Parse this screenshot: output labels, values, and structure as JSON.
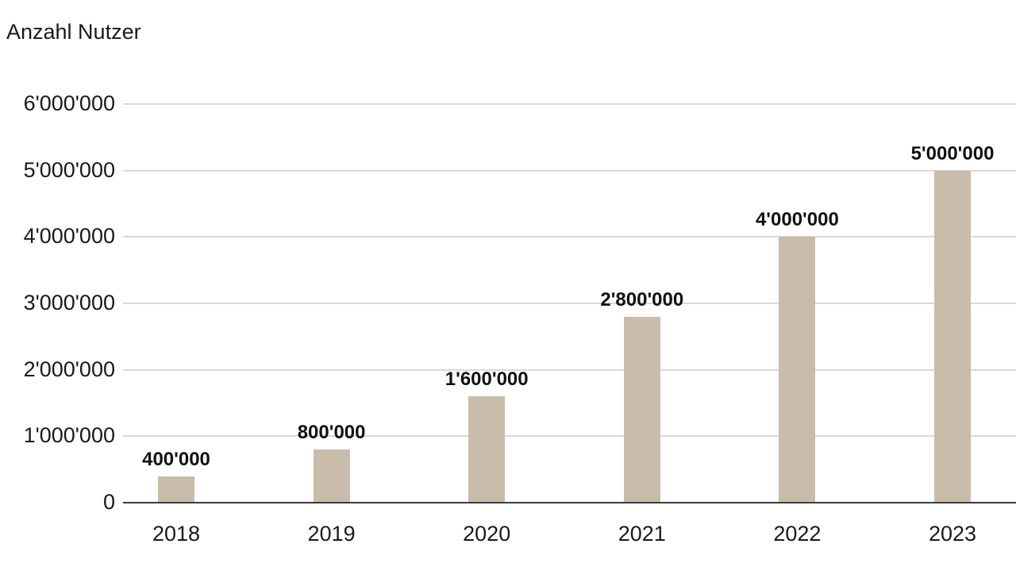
{
  "chart_data": {
    "type": "bar",
    "title": "Anzahl Nutzer",
    "categories": [
      "2018",
      "2019",
      "2020",
      "2021",
      "2022",
      "2023"
    ],
    "values": [
      400000,
      800000,
      1600000,
      2800000,
      4000000,
      5000000
    ],
    "bar_labels": [
      "400'000",
      "800'000",
      "1'600'000",
      "2'800'000",
      "4'000'000",
      "5'000'000"
    ],
    "y_ticks": [
      {
        "value": 0,
        "label": "0"
      },
      {
        "value": 1000000,
        "label": "1'000'000"
      },
      {
        "value": 2000000,
        "label": "2'000'000"
      },
      {
        "value": 3000000,
        "label": "3'000'000"
      },
      {
        "value": 4000000,
        "label": "4'000'000"
      },
      {
        "value": 5000000,
        "label": "5'000'000"
      },
      {
        "value": 6000000,
        "label": "6'000'000"
      }
    ],
    "ylim": [
      0,
      6000000
    ],
    "xlabel": "",
    "ylabel": "Anzahl Nutzer",
    "grid": true,
    "legend": "none",
    "colors": {
      "bar": "#cabcaa",
      "gridline": "#d9d9d9",
      "axis_line": "#3c3c3c",
      "text": "#1a1a1a"
    }
  }
}
